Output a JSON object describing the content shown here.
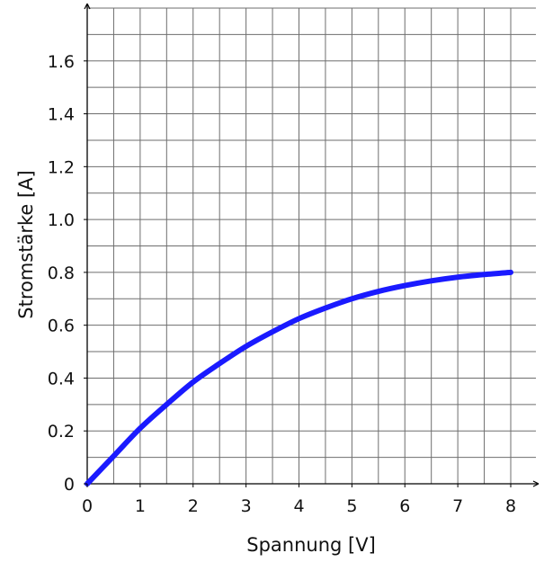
{
  "chart_data": {
    "type": "line",
    "title": "",
    "xlabel": "Spannung [V]",
    "ylabel": "Stromstärke [A]",
    "xlim": [
      0,
      8
    ],
    "ylim": [
      0,
      1.8
    ],
    "grid": true,
    "x_ticks": [
      "0",
      "1",
      "2",
      "3",
      "4",
      "5",
      "6",
      "7",
      "8"
    ],
    "y_ticks": [
      "0",
      "0.2",
      "0.4",
      "0.6",
      "0.8",
      "1.0",
      "1.2",
      "1.4",
      "1.6"
    ],
    "line_color": "#1a1aff",
    "series": [
      {
        "x": [
          0,
          0.5,
          1,
          1.5,
          2,
          2.5,
          3,
          3.5,
          4,
          4.5,
          5,
          5.5,
          6,
          6.5,
          7,
          7.5,
          8
        ],
        "y": [
          0,
          0.105,
          0.21,
          0.3,
          0.385,
          0.455,
          0.52,
          0.575,
          0.625,
          0.665,
          0.7,
          0.728,
          0.75,
          0.768,
          0.782,
          0.792,
          0.8
        ]
      }
    ]
  }
}
